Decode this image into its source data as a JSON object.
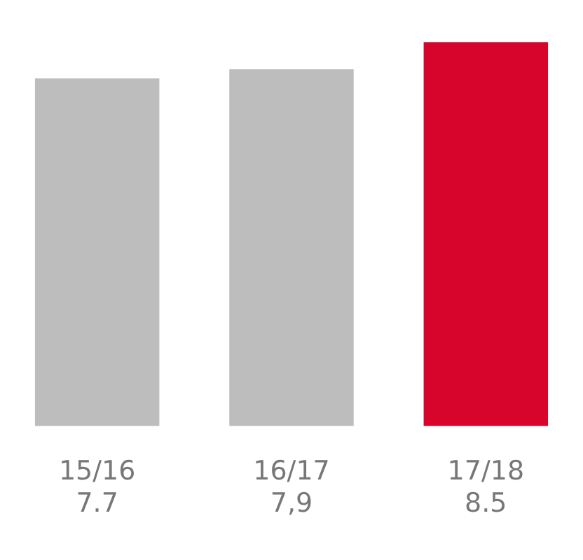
{
  "chart_data": {
    "type": "bar",
    "categories": [
      "15/16",
      "16/17",
      "17/18"
    ],
    "values": [
      7.7,
      7.9,
      8.5
    ],
    "value_labels": [
      "7.7",
      "7,9",
      "8.5"
    ],
    "colors": [
      "#bdbdbd",
      "#bdbdbd",
      "#d7042b"
    ],
    "legend": false
  }
}
